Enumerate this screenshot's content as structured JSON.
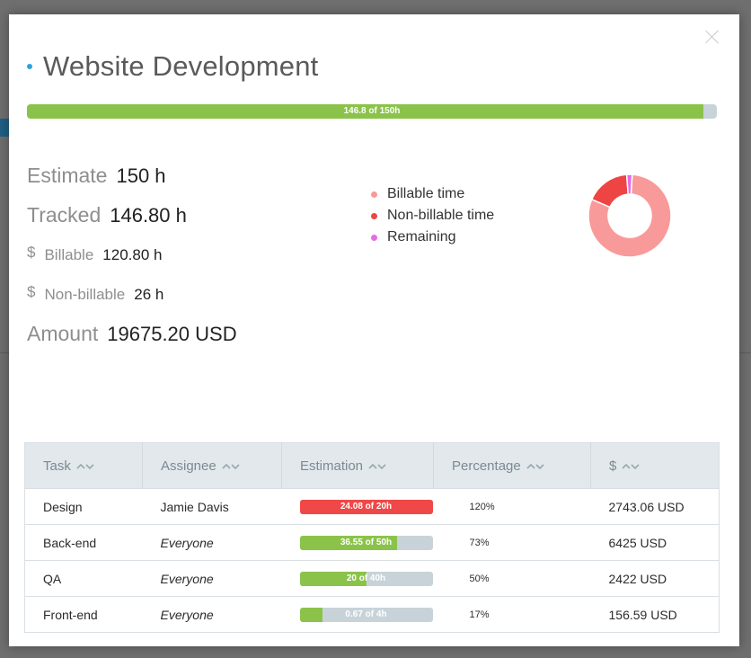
{
  "modal": {
    "title": "Website Development",
    "progress": {
      "label": "146.8 of 150h",
      "fraction": 0.98,
      "color": "#8bc34a"
    }
  },
  "stats": {
    "estimate": {
      "label": "Estimate",
      "value": "150 h"
    },
    "tracked": {
      "label": "Tracked",
      "value": "146.80 h"
    },
    "billable": {
      "symbol": "$",
      "label": "Billable",
      "value": "120.80 h"
    },
    "non_billable": {
      "symbol": "$",
      "label": "Non-billable",
      "value": "26 h"
    },
    "amount": {
      "label": "Amount",
      "value": "19675.20 USD"
    }
  },
  "legend": [
    {
      "label": "Billable time",
      "color": "#f99a9a"
    },
    {
      "label": "Non-billable time",
      "color": "#ef4444"
    },
    {
      "label": "Remaining",
      "color": "#e46de6"
    }
  ],
  "donut_values": {
    "billable": 120.8,
    "non_billable": 26,
    "remaining": 3.2
  },
  "table": {
    "headers": [
      "Task",
      "Assignee",
      "Estimation",
      "Percentage",
      "$"
    ],
    "rows": [
      {
        "task": "Design",
        "assignee": "Jamie Davis",
        "assignee_italic": false,
        "estimation": "24.08 of 20h",
        "fill": 1.0,
        "fill_color": "#f04747",
        "percentage": "120%",
        "amount": "2743.06 USD"
      },
      {
        "task": "Back-end",
        "assignee": "Everyone",
        "assignee_italic": true,
        "estimation": "36.55 of 50h",
        "fill": 0.73,
        "fill_color": "#8bc34a",
        "percentage": "73%",
        "amount": "6425 USD"
      },
      {
        "task": "QA",
        "assignee": "Everyone",
        "assignee_italic": true,
        "estimation": "20 of 40h",
        "fill": 0.5,
        "fill_color": "#8bc34a",
        "percentage": "50%",
        "amount": "2422 USD"
      },
      {
        "task": "Front-end",
        "assignee": "Everyone",
        "assignee_italic": true,
        "estimation": "0.67 of 4h",
        "fill": 0.17,
        "fill_color": "#8bc34a",
        "percentage": "17%",
        "amount": "156.59 USD"
      }
    ]
  }
}
